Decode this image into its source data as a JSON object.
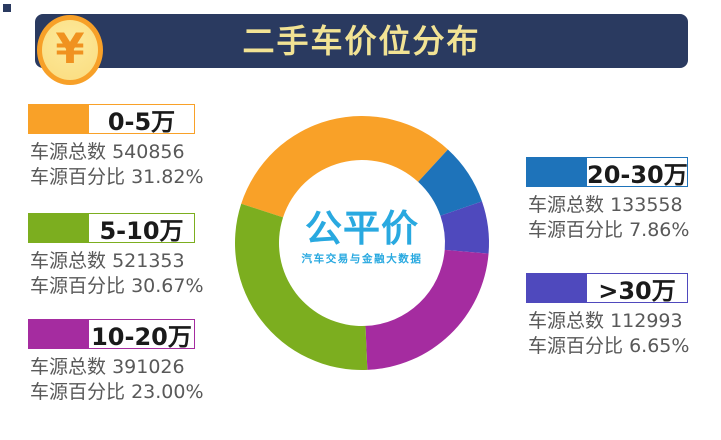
{
  "decor": {
    "corner_square_color": "#2A3A60"
  },
  "header": {
    "title": "二手车价位分布",
    "bar_color": "#2A3A60",
    "title_color": "#F2E394",
    "coin": {
      "symbol": "¥",
      "ring_color": "#F7A028",
      "face_color": "#FBDF85",
      "face_highlight": "#FCEA9C",
      "symbol_color": "#F09220"
    }
  },
  "logo": {
    "name": "公平价",
    "tagline": "汽车交易与金融大数据",
    "color": "#29A9E0"
  },
  "chart_data": {
    "type": "pie",
    "subtype": "donut",
    "title": "二手车价位分布",
    "rotation_from_north_deg": -72,
    "inner_radius_ratio": 0.654,
    "clockwise_order": [
      "0-5万",
      "20-30万",
      ">30万",
      "10-20万",
      "5-10万"
    ],
    "count_label": "车源总数",
    "percent_label": "车源百分比",
    "series": [
      {
        "label": "0-5万",
        "count": "540856",
        "percent": 31.82,
        "percent_text": "31.82%",
        "color": "#F9A128"
      },
      {
        "label": "5-10万",
        "count": "521353",
        "percent": 30.67,
        "percent_text": "30.67%",
        "color": "#7CAE1F"
      },
      {
        "label": "10-20万",
        "count": "391026",
        "percent": 23.0,
        "percent_text": "23.00%",
        "color": "#A52CA0"
      },
      {
        "label": "20-30万",
        "count": "133558",
        "percent": 7.86,
        "percent_text": "7.86%",
        "color": "#1E73BA"
      },
      {
        "label": ">30万",
        "count": "112993",
        "percent": 6.65,
        "percent_text": "6.65%",
        "color": "#4F49BD"
      }
    ],
    "legend_sides": {
      "left": [
        0,
        1,
        2
      ],
      "right": [
        3,
        4
      ]
    }
  }
}
